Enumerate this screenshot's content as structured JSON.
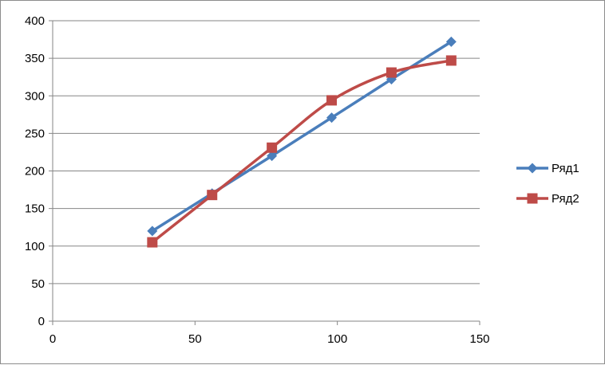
{
  "chart_data": {
    "type": "scatter",
    "title": "",
    "xlabel": "",
    "ylabel": "",
    "xlim": [
      0,
      150
    ],
    "ylim": [
      0,
      400
    ],
    "x_ticks": [
      "0",
      "50",
      "100",
      "150"
    ],
    "y_ticks": [
      "0",
      "50",
      "100",
      "150",
      "200",
      "250",
      "300",
      "350",
      "400"
    ],
    "grid": "horizontal",
    "legend_position": "right",
    "series": [
      {
        "name": "Ряд1",
        "color": "#4a7ebb",
        "marker": "diamond",
        "smooth": false,
        "points": [
          [
            35,
            120
          ],
          [
            56,
            170
          ],
          [
            77,
            220
          ],
          [
            98,
            271
          ],
          [
            119,
            322
          ],
          [
            140,
            372
          ]
        ]
      },
      {
        "name": "Ряд2",
        "color": "#be4b48",
        "marker": "square",
        "smooth": true,
        "points": [
          [
            35,
            105
          ],
          [
            56,
            168
          ],
          [
            77,
            231
          ],
          [
            98,
            294
          ],
          [
            119,
            331
          ],
          [
            140,
            347
          ]
        ]
      }
    ]
  }
}
